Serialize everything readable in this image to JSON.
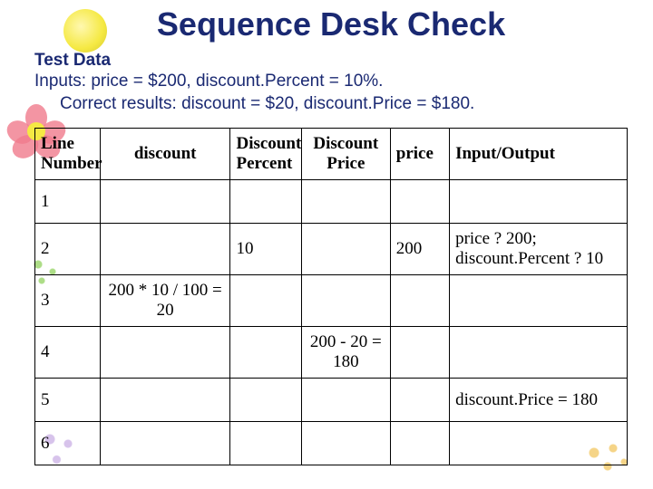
{
  "title": "Sequence Desk Check",
  "subhead": "Test Data",
  "inputs_line": "Inputs: price = $200, discount.Percent = 10%.",
  "results_line": "Correct results: discount = $20, discount.Price = $180.",
  "table": {
    "columns": [
      {
        "text": "Line Number",
        "width_pct": 11
      },
      {
        "text": "discount",
        "width_pct": 22
      },
      {
        "text": "Discount Percent",
        "width_pct": 12
      },
      {
        "text": "Discount Price",
        "width_pct": 15
      },
      {
        "text": "price",
        "width_pct": 10
      },
      {
        "text": "Input/Output",
        "width_pct": 30
      }
    ],
    "rows": [
      {
        "line": "1",
        "discount": "",
        "percent": "",
        "dprice": "",
        "price": "",
        "io": ""
      },
      {
        "line": "2",
        "discount": "",
        "percent": "10",
        "dprice": "",
        "price": "200",
        "io": "price ? 200;        discount.Percent ? 10"
      },
      {
        "line": "3",
        "discount": "200 * 10 / 100 = 20",
        "percent": "",
        "dprice": "",
        "price": "",
        "io": ""
      },
      {
        "line": "4",
        "discount": "",
        "percent": "",
        "dprice": "200 - 20 = 180",
        "price": "",
        "io": ""
      },
      {
        "line": "5",
        "discount": "",
        "percent": "",
        "dprice": "",
        "price": "",
        "io": "discount.Price = 180"
      },
      {
        "line": "6",
        "discount": "",
        "percent": "",
        "dprice": "",
        "price": "",
        "io": ""
      }
    ]
  },
  "colors": {
    "heading": "#1a2972",
    "text": "#000000",
    "border": "#000000",
    "background": "#ffffff"
  },
  "typography": {
    "title_fontsize": 36,
    "body_fontsize": 19,
    "table_fontsize": 19,
    "heading_font": "Verdana",
    "table_font": "Times New Roman"
  }
}
